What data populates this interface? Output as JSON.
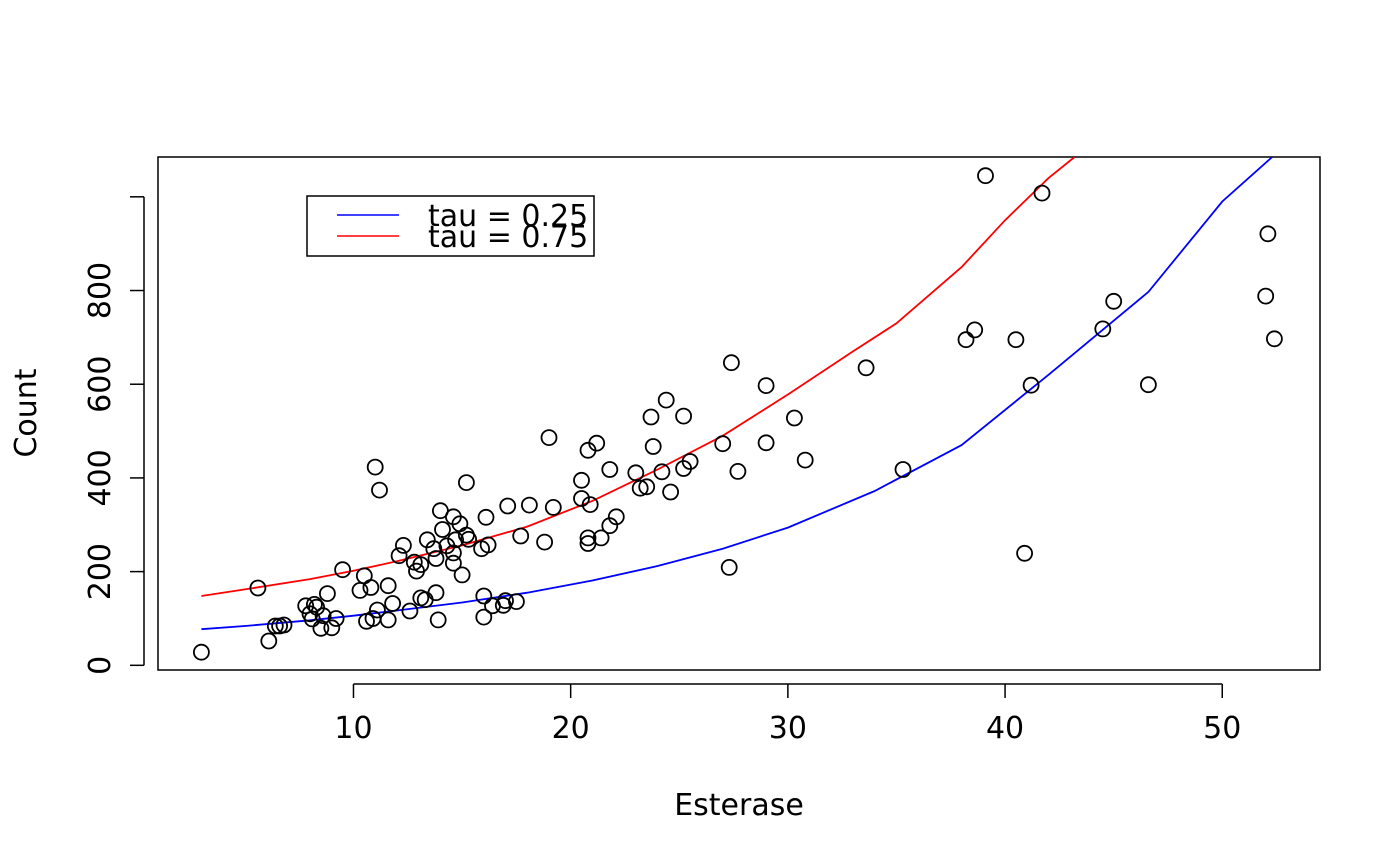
{
  "chart_data": {
    "type": "scatter",
    "title": "",
    "xlabel": "Esterase",
    "ylabel": "Count",
    "xlim": [
      1,
      54.5
    ],
    "ylim": [
      -10,
      1085
    ],
    "xticks": [
      10,
      20,
      30,
      40,
      50
    ],
    "yticks": [
      0,
      200,
      400,
      600,
      800
    ],
    "grid": false,
    "legend": {
      "position": "top-left",
      "entries": [
        {
          "label": "tau = 0.25",
          "color": "#0000ff"
        },
        {
          "label": "tau = 0.75",
          "color": "#ff0000"
        }
      ]
    },
    "points": {
      "x": [
        3.0,
        5.6,
        6.1,
        6.4,
        6.6,
        6.8,
        7.8,
        8.0,
        8.1,
        8.2,
        8.3,
        8.5,
        8.6,
        8.8,
        9.0,
        9.2,
        9.5,
        10.3,
        10.5,
        10.6,
        10.8,
        10.9,
        11.0,
        11.1,
        11.2,
        11.6,
        11.6,
        11.8,
        12.1,
        12.3,
        12.6,
        12.8,
        12.9,
        13.1,
        13.1,
        13.3,
        13.4,
        13.7,
        13.8,
        13.8,
        13.9,
        14.0,
        14.1,
        14.3,
        14.6,
        14.6,
        14.6,
        14.7,
        14.9,
        15.0,
        15.2,
        15.2,
        15.3,
        15.9,
        16.0,
        16.0,
        16.1,
        16.2,
        16.4,
        16.9,
        17.0,
        17.1,
        17.5,
        17.7,
        18.1,
        18.8,
        19.0,
        19.2,
        20.5,
        20.5,
        20.8,
        20.8,
        20.8,
        20.9,
        21.2,
        21.4,
        21.8,
        21.8,
        22.1,
        23.0,
        23.2,
        23.5,
        23.7,
        23.8,
        24.2,
        24.4,
        24.6,
        25.2,
        25.2,
        25.5,
        27.0,
        27.3,
        27.4,
        27.7,
        29.0,
        29.0,
        30.3,
        30.8,
        33.6,
        35.3,
        38.2,
        38.6,
        39.1,
        40.5,
        40.9,
        41.2,
        41.7,
        44.5,
        45.0,
        46.6,
        52.0,
        52.1,
        52.4
      ],
      "y": [
        28,
        165,
        52,
        84,
        84,
        86,
        127,
        110,
        99,
        130,
        124,
        79,
        106,
        153,
        80,
        100,
        204,
        160,
        191,
        94,
        166,
        100,
        423,
        118,
        374,
        170,
        97,
        132,
        234,
        256,
        116,
        220,
        201,
        144,
        215,
        140,
        268,
        249,
        155,
        228,
        97,
        330,
        290,
        255,
        317,
        218,
        240,
        268,
        302,
        193,
        390,
        278,
        269,
        249,
        148,
        103,
        316,
        257,
        127,
        128,
        138,
        340,
        136,
        276,
        342,
        263,
        486,
        337,
        395,
        356,
        260,
        459,
        272,
        343,
        474,
        272,
        298,
        418,
        317,
        411,
        378,
        381,
        530,
        467,
        413,
        566,
        370,
        532,
        420,
        435,
        473,
        209,
        646,
        414,
        597,
        475,
        528,
        438,
        635,
        418,
        695,
        716,
        1045,
        695,
        239,
        598,
        1008,
        718,
        777,
        599,
        788,
        921,
        697
      ]
    },
    "series": [
      {
        "name": "tau = 0.25",
        "color": "#0000ff",
        "x": [
          3,
          5,
          8,
          10,
          12,
          15,
          18,
          21,
          24,
          27,
          30,
          34,
          38,
          42,
          46.6,
          50,
          52.3
        ],
        "y": [
          77,
          84,
          96,
          106,
          117,
          134,
          155,
          181,
          212,
          249,
          294,
          372,
          470,
          620,
          797,
          990,
          1085
        ]
      },
      {
        "name": "tau = 0.75",
        "color": "#ff0000",
        "x": [
          3,
          5,
          8,
          10,
          12,
          15,
          18,
          21,
          24,
          27,
          30,
          33,
          35,
          38,
          40,
          42,
          43.2
        ],
        "y": [
          148,
          162,
          184,
          202,
          222,
          256,
          296,
          351,
          418,
          490,
          578,
          670,
          730,
          850,
          950,
          1040,
          1085
        ]
      }
    ]
  }
}
